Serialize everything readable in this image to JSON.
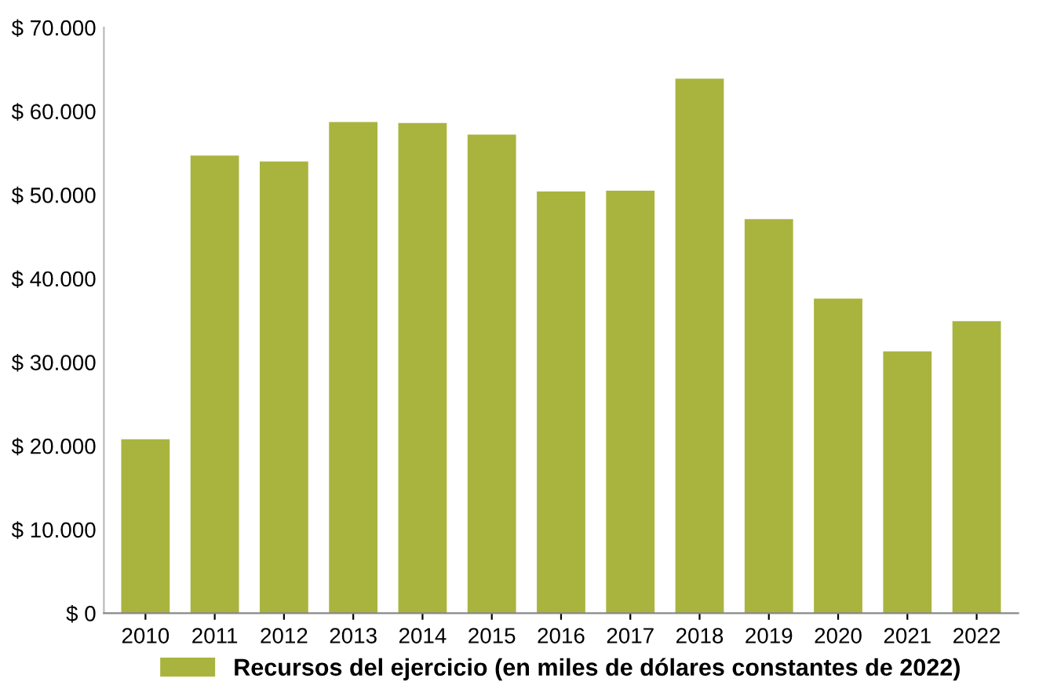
{
  "chart_data": {
    "type": "bar",
    "categories": [
      "2010",
      "2011",
      "2012",
      "2013",
      "2014",
      "2015",
      "2016",
      "2017",
      "2018",
      "2019",
      "2020",
      "2021",
      "2022"
    ],
    "series": [
      {
        "name": "Recursos del ejercicio (en miles de dólares constantes de 2022)",
        "color": "#a9b43f",
        "values": [
          20800,
          54700,
          54000,
          58700,
          58600,
          57200,
          50400,
          50500,
          63900,
          47100,
          37600,
          31300,
          34900
        ]
      }
    ],
    "ylim": [
      0,
      70000
    ],
    "yticks": [
      {
        "value": 0,
        "label": "$ 0"
      },
      {
        "value": 10000,
        "label": "$ 10.000"
      },
      {
        "value": 20000,
        "label": "$ 20.000"
      },
      {
        "value": 30000,
        "label": "$ 30.000"
      },
      {
        "value": 40000,
        "label": "$ 40.000"
      },
      {
        "value": 50000,
        "label": "$ 50.000"
      },
      {
        "value": 60000,
        "label": "$ 60.000"
      },
      {
        "value": 70000,
        "label": "$ 70.000"
      }
    ],
    "grid": false,
    "legend": "bottom"
  }
}
